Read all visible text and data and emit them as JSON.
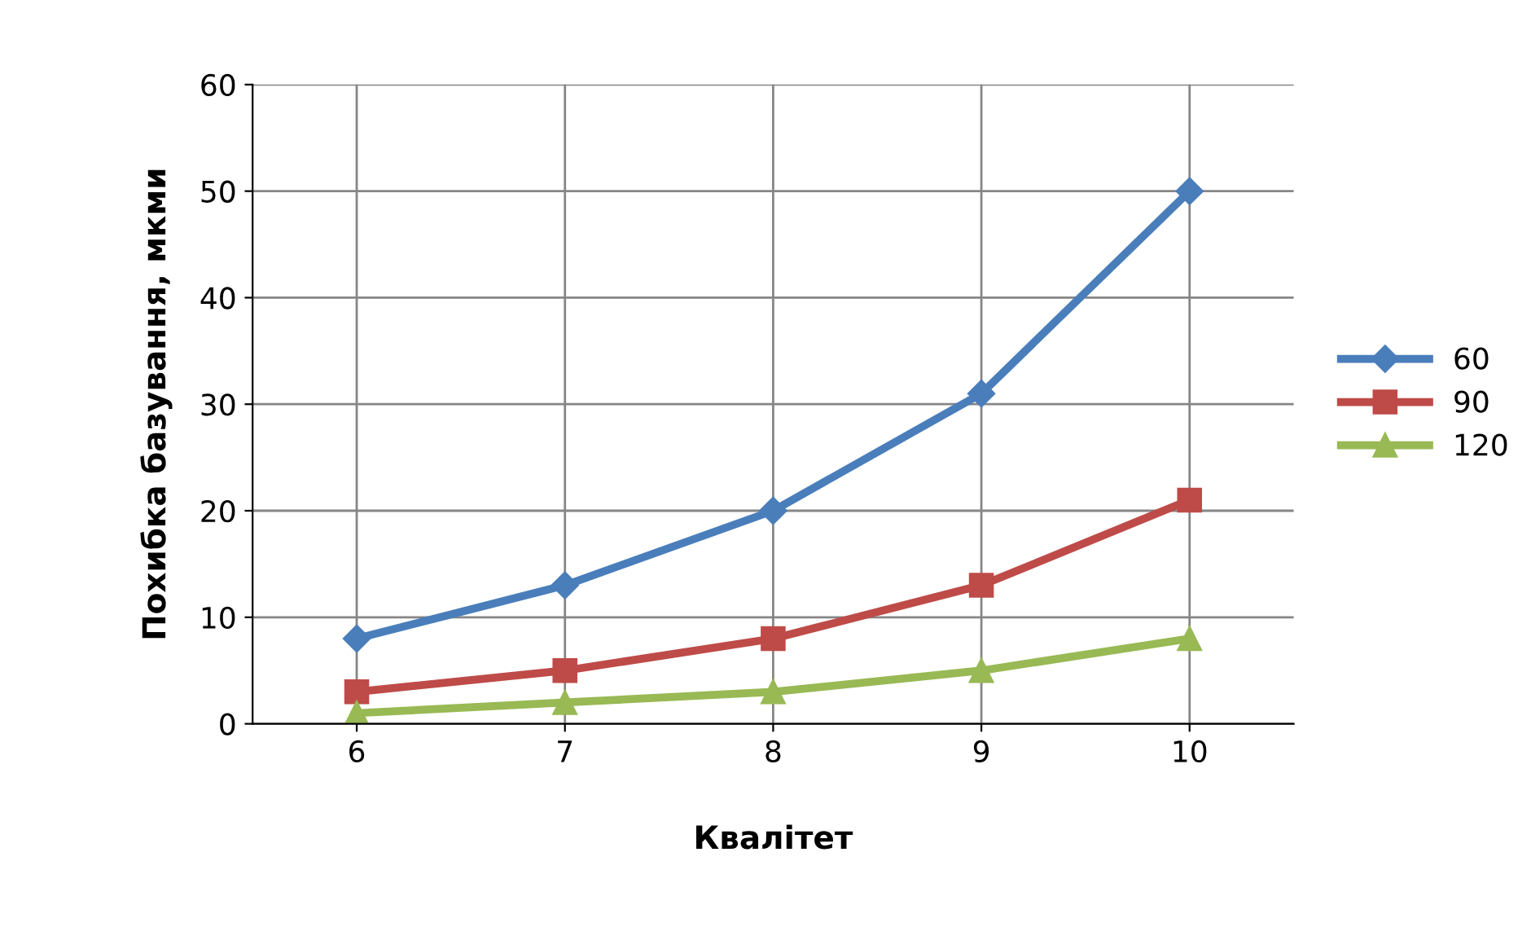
{
  "chart_data": {
    "type": "line",
    "xlabel": "Квалітет",
    "ylabel": "Похибка базування, мкми",
    "categories": [
      "6",
      "7",
      "8",
      "9",
      "10"
    ],
    "series": [
      {
        "name": "60",
        "color": "#4a7ebb",
        "marker": "diamond",
        "values": [
          8,
          13,
          20,
          31,
          50
        ]
      },
      {
        "name": "90",
        "color": "#be4b48",
        "marker": "square",
        "values": [
          3,
          5,
          8,
          13,
          21
        ]
      },
      {
        "name": "120",
        "color": "#98b954",
        "marker": "triangle",
        "values": [
          1,
          2,
          3,
          5,
          8
        ]
      }
    ],
    "ylim": [
      0,
      60
    ],
    "yticks": [
      0,
      10,
      20,
      30,
      40,
      50,
      60
    ],
    "grid": true,
    "legend": "right",
    "line_style": "solid"
  }
}
